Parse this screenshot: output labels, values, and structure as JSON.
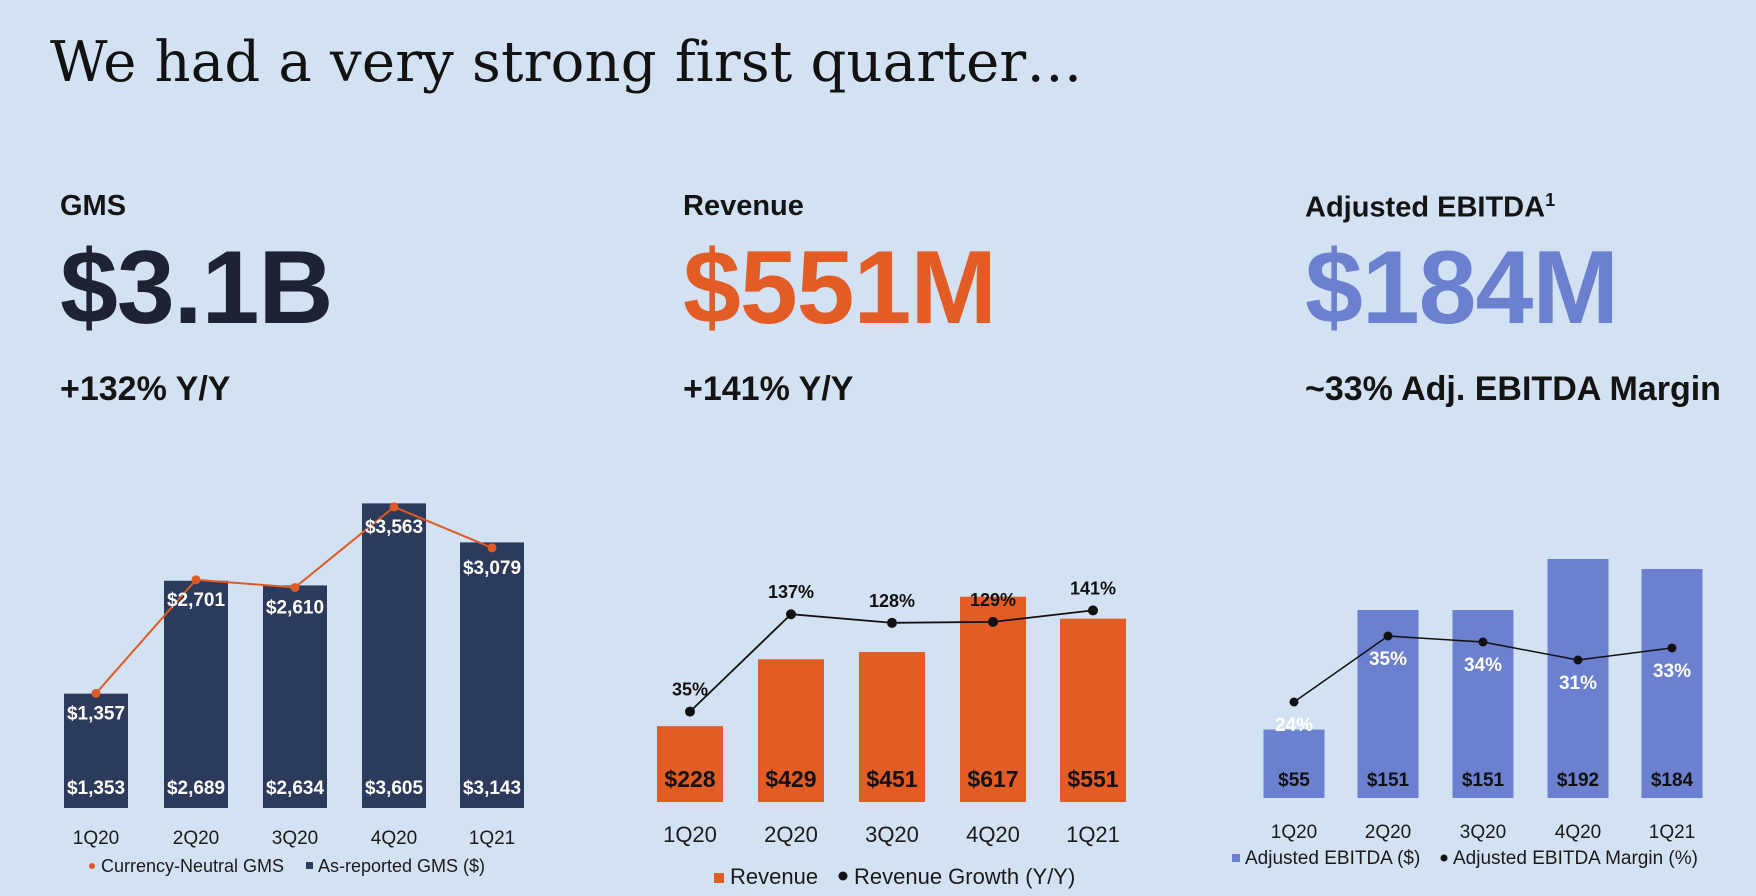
{
  "title": "We had a very strong first quarter…",
  "colors": {
    "background": "#d3e2f2",
    "gms_bar": "#2c3a5c",
    "gms_line": "#e05a25",
    "revenue": "#e35b25",
    "ebitda": "#6b80cf",
    "line_dark": "#111111"
  },
  "kpis": {
    "gms": {
      "label": "GMS",
      "value": "$3.1B",
      "change": "+132% Y/Y"
    },
    "revenue": {
      "label": "Revenue",
      "value": "$551M",
      "change": "+141% Y/Y"
    },
    "ebitda": {
      "label": "Adjusted EBITDA",
      "footnote": "1",
      "value": "$184M",
      "change": "~33% Adj. EBITDA Margin"
    }
  },
  "chart_data": [
    {
      "type": "bar",
      "categories": [
        "1Q20",
        "2Q20",
        "3Q20",
        "4Q20",
        "1Q21"
      ],
      "series": [
        {
          "name": "As-reported GMS ($)",
          "type": "bar",
          "values": [
            1353,
            2689,
            2634,
            3605,
            3143
          ],
          "labels": [
            "$1,353",
            "$2,689",
            "$2,634",
            "$3,605",
            "$3,143"
          ]
        },
        {
          "name": "Currency-Neutral GMS",
          "type": "line",
          "values": [
            1357,
            2701,
            2610,
            3563,
            3079
          ],
          "labels": [
            "$1,357",
            "$2,701",
            "$2,610",
            "$3,563",
            "$3,079"
          ]
        }
      ],
      "legend": [
        "Currency-Neutral GMS",
        "As-reported GMS ($)"
      ],
      "legend_position": "bottom"
    },
    {
      "type": "bar",
      "categories": [
        "1Q20",
        "2Q20",
        "3Q20",
        "4Q20",
        "1Q21"
      ],
      "series": [
        {
          "name": "Revenue",
          "type": "bar",
          "values": [
            228,
            429,
            451,
            617,
            551
          ],
          "labels": [
            "$228",
            "$429",
            "$451",
            "$617",
            "$551"
          ]
        },
        {
          "name": "Revenue Growth (Y/Y)",
          "type": "line",
          "values": [
            35,
            137,
            128,
            129,
            141
          ],
          "labels": [
            "35%",
            "137%",
            "128%",
            "129%",
            "141%"
          ]
        }
      ],
      "legend": [
        "Revenue",
        "Revenue Growth (Y/Y)"
      ],
      "legend_position": "bottom"
    },
    {
      "type": "bar",
      "categories": [
        "1Q20",
        "2Q20",
        "3Q20",
        "4Q20",
        "1Q21"
      ],
      "series": [
        {
          "name": "Adjusted EBITDA ($)",
          "type": "bar",
          "values": [
            55,
            151,
            151,
            192,
            184
          ],
          "labels": [
            "$55",
            "$151",
            "$151",
            "$192",
            "$184"
          ]
        },
        {
          "name": "Adjusted EBITDA Margin (%)",
          "type": "line",
          "values": [
            24,
            35,
            34,
            31,
            33
          ],
          "labels": [
            "24%",
            "35%",
            "34%",
            "31%",
            "33%"
          ]
        }
      ],
      "legend": [
        "Adjusted EBITDA ($)",
        "Adjusted EBITDA Margin (%)"
      ],
      "legend_position": "bottom"
    }
  ]
}
